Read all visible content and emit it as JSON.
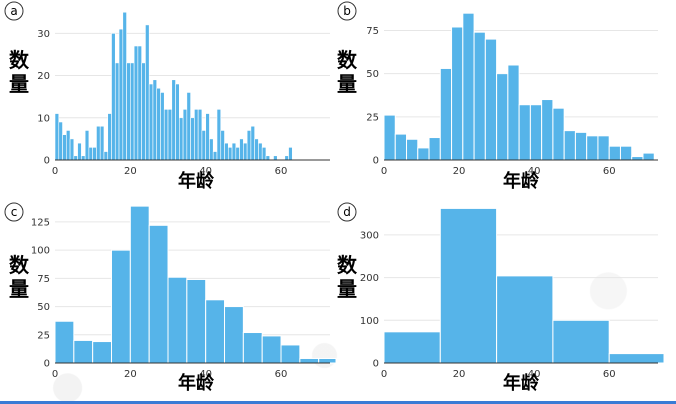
{
  "colors": {
    "bar": "#56b4e9",
    "grid": "#e6e6e6",
    "axis": "#333333",
    "text": "#000000",
    "strip": "#3a7bd5"
  },
  "chart_data": [
    {
      "panel_label": "a",
      "type": "bar",
      "histogram": true,
      "ylabel": "数\n量",
      "xlabel": "年龄",
      "x_ticks": [
        0,
        20,
        40,
        60
      ],
      "y_ticks": [
        0,
        10,
        20,
        30
      ],
      "xlim": [
        0,
        73
      ],
      "ylim": [
        0,
        36
      ],
      "bin_width": 1,
      "bin_start": 0,
      "values": [
        11,
        9,
        6,
        7,
        5,
        1,
        4,
        1,
        7,
        3,
        3,
        8,
        8,
        2,
        11,
        30,
        23,
        31,
        35,
        23,
        23,
        27,
        27,
        23,
        32,
        18,
        19,
        17,
        16,
        12,
        12,
        19,
        18,
        10,
        12,
        16,
        10,
        12,
        12,
        7,
        11,
        5,
        2,
        12,
        7,
        4,
        3,
        4,
        3,
        5,
        4,
        7,
        8,
        5,
        4,
        3,
        1,
        0,
        1,
        0,
        0,
        1,
        3,
        0,
        0
      ]
    },
    {
      "panel_label": "b",
      "type": "bar",
      "histogram": true,
      "ylabel": "数\n量",
      "xlabel": "年龄",
      "x_ticks": [
        0,
        20,
        40,
        60
      ],
      "y_ticks": [
        0,
        25,
        50,
        75
      ],
      "xlim": [
        0,
        73
      ],
      "ylim": [
        0,
        88
      ],
      "bin_width": 3,
      "bin_start": 0,
      "values": [
        26,
        15,
        12,
        7,
        13,
        53,
        77,
        85,
        74,
        70,
        50,
        55,
        32,
        32,
        35,
        30,
        17,
        16,
        14,
        14,
        8,
        8,
        2,
        4
      ]
    },
    {
      "panel_label": "c",
      "type": "bar",
      "histogram": true,
      "ylabel": "数\n量",
      "xlabel": "年龄",
      "x_ticks": [
        0,
        20,
        40,
        60
      ],
      "y_ticks": [
        0,
        25,
        50,
        75,
        100,
        125
      ],
      "xlim": [
        0,
        73
      ],
      "ylim": [
        0,
        140
      ],
      "bin_width": 5,
      "bin_start": 0,
      "values": [
        37,
        20,
        19,
        100,
        139,
        122,
        76,
        74,
        56,
        50,
        27,
        24,
        16,
        4,
        4
      ]
    },
    {
      "panel_label": "d",
      "type": "bar",
      "histogram": true,
      "ylabel": "数\n量",
      "xlabel": "年龄",
      "x_ticks": [
        0,
        20,
        40,
        60
      ],
      "y_ticks": [
        0,
        100,
        200,
        300
      ],
      "xlim": [
        0,
        73
      ],
      "ylim": [
        0,
        370
      ],
      "bin_width": 15,
      "bin_start": 0,
      "values": [
        73,
        362,
        204,
        100,
        22
      ]
    }
  ]
}
